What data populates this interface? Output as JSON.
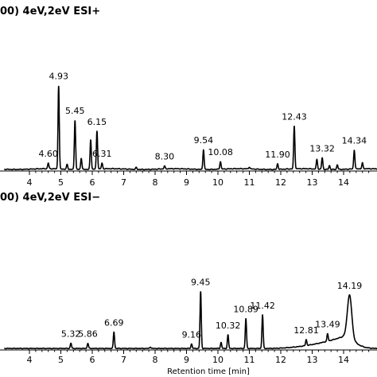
{
  "chart_data": [
    {
      "type": "line",
      "title": "00) 4eV,2eV ESI+",
      "xlabel": "",
      "ylabel": "",
      "xlim": [
        3.2,
        15.2
      ],
      "ylim": [
        0,
        1
      ],
      "x_ticks": [
        "4",
        "5",
        "6",
        "7",
        "8",
        "9",
        "10",
        "11",
        "12",
        "13",
        "14"
      ],
      "peaks": [
        {
          "x": 4.6,
          "y": 0.06,
          "label": "4.60"
        },
        {
          "x": 4.93,
          "y": 0.88,
          "label": "4.93"
        },
        {
          "x": 5.2,
          "y": 0.05,
          "label": ""
        },
        {
          "x": 5.45,
          "y": 0.52,
          "label": "5.45"
        },
        {
          "x": 5.65,
          "y": 0.12,
          "label": ""
        },
        {
          "x": 5.95,
          "y": 0.31,
          "label": ""
        },
        {
          "x": 6.15,
          "y": 0.4,
          "label": "6.15"
        },
        {
          "x": 6.31,
          "y": 0.06,
          "label": "6.31"
        },
        {
          "x": 7.4,
          "y": 0.02,
          "label": ""
        },
        {
          "x": 8.3,
          "y": 0.03,
          "label": "8.30"
        },
        {
          "x": 9.54,
          "y": 0.21,
          "label": "9.54"
        },
        {
          "x": 10.08,
          "y": 0.08,
          "label": "10.08"
        },
        {
          "x": 11.0,
          "y": 0.02,
          "label": ""
        },
        {
          "x": 11.9,
          "y": 0.06,
          "label": "11.90"
        },
        {
          "x": 12.43,
          "y": 0.45,
          "label": "12.43"
        },
        {
          "x": 13.15,
          "y": 0.1,
          "label": ""
        },
        {
          "x": 13.32,
          "y": 0.12,
          "label": "13.32"
        },
        {
          "x": 13.55,
          "y": 0.04,
          "label": ""
        },
        {
          "x": 13.8,
          "y": 0.05,
          "label": ""
        },
        {
          "x": 14.34,
          "y": 0.2,
          "label": "14.34"
        },
        {
          "x": 14.6,
          "y": 0.06,
          "label": ""
        }
      ]
    },
    {
      "type": "line",
      "title": "00) 4eV,2eV ESI−",
      "xlabel": "Retention time [min]",
      "ylabel": "",
      "xlim": [
        3.2,
        15.2
      ],
      "ylim": [
        0,
        1
      ],
      "x_ticks": [
        "4",
        "5",
        "6",
        "7",
        "8",
        "9",
        "10",
        "11",
        "12",
        "13",
        "14"
      ],
      "peaks": [
        {
          "x": 5.32,
          "y": 0.07,
          "label": "5.32"
        },
        {
          "x": 5.86,
          "y": 0.07,
          "label": "5.86"
        },
        {
          "x": 6.69,
          "y": 0.22,
          "label": "6.69"
        },
        {
          "x": 7.85,
          "y": 0.02,
          "label": ""
        },
        {
          "x": 9.16,
          "y": 0.06,
          "label": "9.16"
        },
        {
          "x": 9.45,
          "y": 0.76,
          "label": "9.45"
        },
        {
          "x": 10.1,
          "y": 0.08,
          "label": ""
        },
        {
          "x": 10.32,
          "y": 0.18,
          "label": "10.32"
        },
        {
          "x": 10.89,
          "y": 0.4,
          "label": "10.89"
        },
        {
          "x": 11.42,
          "y": 0.45,
          "label": "11.42"
        },
        {
          "x": 12.81,
          "y": 0.08,
          "label": "12.81"
        },
        {
          "x": 13.49,
          "y": 0.1,
          "label": "13.49"
        },
        {
          "x": 14.19,
          "y": 0.58,
          "label": "14.19"
        }
      ]
    }
  ]
}
